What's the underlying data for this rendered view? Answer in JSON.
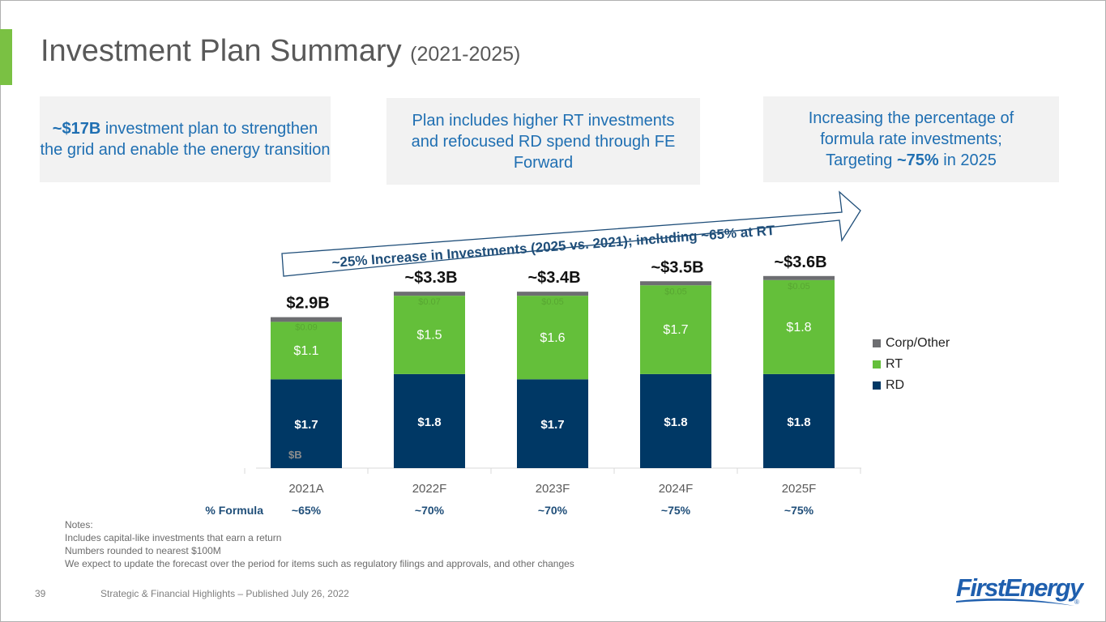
{
  "page": {
    "title": "Investment Plan Summary",
    "title_suffix": "(2021-2025)",
    "slide_number": "39",
    "footer": "Strategic & Financial Highlights – Published July 26, 2022",
    "logo_text": "FirstEnergy",
    "logo_registered": "®"
  },
  "callouts": [
    {
      "bold": "~$17B",
      "text": " investment plan to strengthen the grid and enable the energy transition"
    },
    {
      "text": "Plan includes higher RT investments and refocused RD spend through FE Forward"
    },
    {
      "text_before": "Increasing the percentage of formula rate investments; Targeting ",
      "bold": "~75%",
      "text_after": " in 2025"
    }
  ],
  "arrow_banner": "~25% Increase in Investments (2025 vs. 2021); including ~65% at RT",
  "formula": {
    "label": "% Formula",
    "values": [
      "~65%",
      "~70%",
      "~70%",
      "~75%",
      "~75%"
    ]
  },
  "notes": {
    "heading": "Notes:",
    "lines": [
      "Includes capital-like investments that earn a return",
      "Numbers rounded to nearest $100M",
      "We expect to update the forecast over the period for items such as regulatory filings and approvals, and other changes"
    ]
  },
  "chart_data": {
    "type": "bar",
    "stacked": true,
    "title": "",
    "ylabel": "$B",
    "xlabel": "",
    "categories": [
      "2021A",
      "2022F",
      "2023F",
      "2024F",
      "2025F"
    ],
    "series": [
      {
        "name": "RD",
        "color": "#003865",
        "values": [
          1.7,
          1.8,
          1.7,
          1.8,
          1.8
        ],
        "labels": [
          "$1.7",
          "$1.8",
          "$1.7",
          "$1.8",
          "$1.8"
        ]
      },
      {
        "name": "RT",
        "color": "#64bf3a",
        "values": [
          1.1,
          1.5,
          1.6,
          1.7,
          1.8
        ],
        "labels": [
          "$1.1",
          "$1.5",
          "$1.6",
          "$1.7",
          "$1.8"
        ]
      },
      {
        "name": "Corp/Other",
        "color": "#6d6e71",
        "values": [
          0.09,
          0.07,
          0.05,
          0.05,
          0.05
        ],
        "labels": [
          "$0.09",
          "$0.07",
          "$0.05",
          "$0.05",
          "$0.05"
        ]
      }
    ],
    "totals": [
      "$2.9B",
      "~$3.3B",
      "~$3.4B",
      "~$3.5B",
      "~$3.6B"
    ],
    "legend": [
      "Corp/Other",
      "RT",
      "RD"
    ],
    "legend_position": "right",
    "ylim": [
      0,
      3.7
    ],
    "grid": false
  }
}
